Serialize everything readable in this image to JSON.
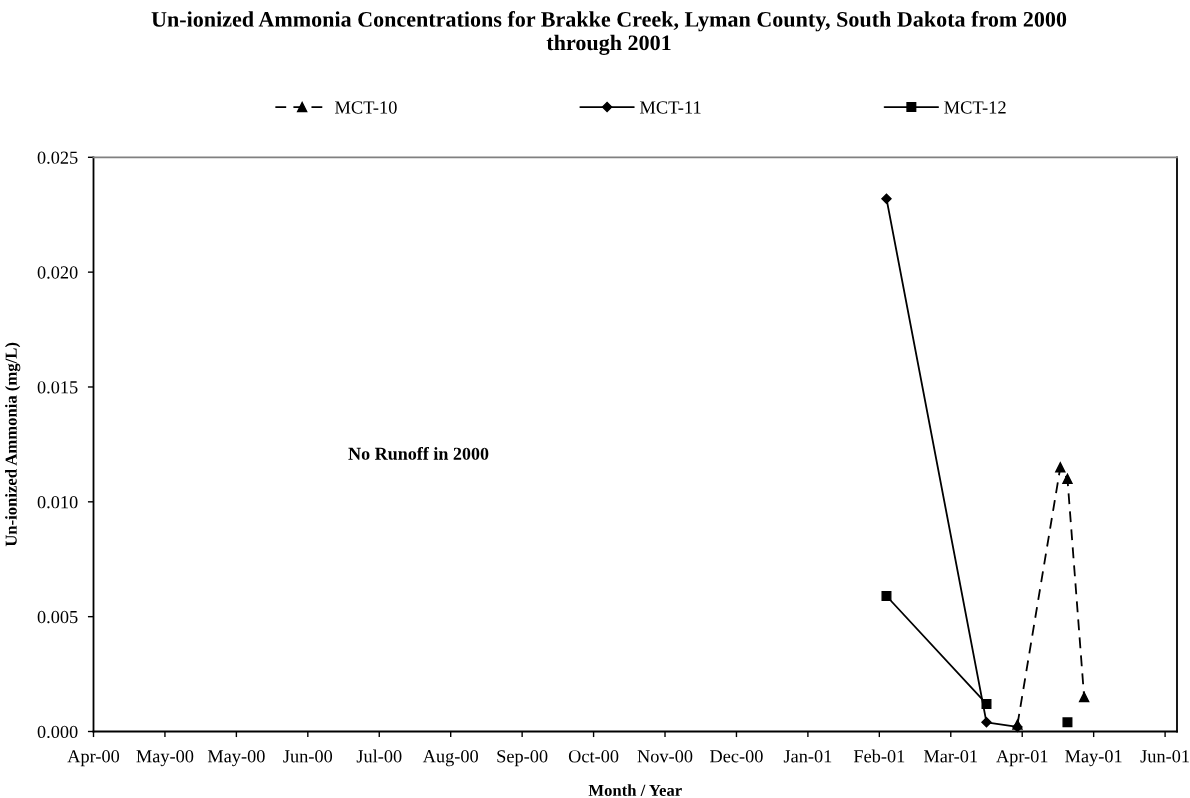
{
  "chart_data": {
    "type": "line",
    "title": "Un-ionized Ammonia Concentrations for Brakke Creek, Lyman County, South Dakota from 2000\nthrough 2001",
    "xlabel": "Month / Year",
    "ylabel": "Un-ionized Ammonia (mg/L)",
    "annotations": [
      "No Runoff in 2000"
    ],
    "series": [
      {
        "name": "MCT-10",
        "color": "#000000",
        "marker": "triangle",
        "line_style": "dashed",
        "x": [
          "2001-04-24",
          "2001-05-12",
          "2001-05-15",
          "2001-05-22"
        ],
        "values": [
          0.0003,
          0.0115,
          0.011,
          0.0015
        ]
      },
      {
        "name": "MCT-11",
        "color": "#000000",
        "marker": "diamond",
        "line_style": "solid",
        "x": [
          "2001-02-28",
          "2001-04-11",
          "2001-04-24"
        ],
        "values": [
          0.0232,
          0.0004,
          0.0002
        ]
      },
      {
        "name": "MCT-12",
        "color": "#000000",
        "marker": "square",
        "line_style": "solid",
        "x": [
          "2001-02-28",
          "2001-04-11",
          "2001-04-24",
          "2001-05-15"
        ],
        "values": [
          0.0059,
          0.0012,
          null,
          0.0004
        ]
      }
    ],
    "xlim": [
      "2000-04-01",
      "2001-06-30"
    ],
    "xticks": [
      {
        "value": "2000-04-01",
        "label": "Apr-00"
      },
      {
        "value": "2000-05-01",
        "label": "May-00"
      },
      {
        "value": "2000-05-31",
        "label": "May-00"
      },
      {
        "value": "2000-06-30",
        "label": "Jun-00"
      },
      {
        "value": "2000-07-30",
        "label": "Jul-00"
      },
      {
        "value": "2000-08-29",
        "label": "Aug-00"
      },
      {
        "value": "2000-09-28",
        "label": "Sep-00"
      },
      {
        "value": "2000-10-28",
        "label": "Oct-00"
      },
      {
        "value": "2000-11-27",
        "label": "Nov-00"
      },
      {
        "value": "2000-12-27",
        "label": "Dec-00"
      },
      {
        "value": "2001-01-26",
        "label": "Jan-01"
      },
      {
        "value": "2001-02-25",
        "label": "Feb-01"
      },
      {
        "value": "2001-03-27",
        "label": "Mar-01"
      },
      {
        "value": "2001-04-26",
        "label": "Apr-01"
      },
      {
        "value": "2001-05-26",
        "label": "May-01"
      },
      {
        "value": "2001-06-25",
        "label": "Jun-01"
      }
    ],
    "ylim": [
      0,
      0.025
    ],
    "yticks": [
      {
        "value": 0,
        "label": "0.000"
      },
      0.005,
      {
        "value": 0.01,
        "label": "0.010"
      },
      0.015,
      {
        "value": 0.02,
        "label": "0.020"
      },
      0.025
    ],
    "legend": "top"
  }
}
